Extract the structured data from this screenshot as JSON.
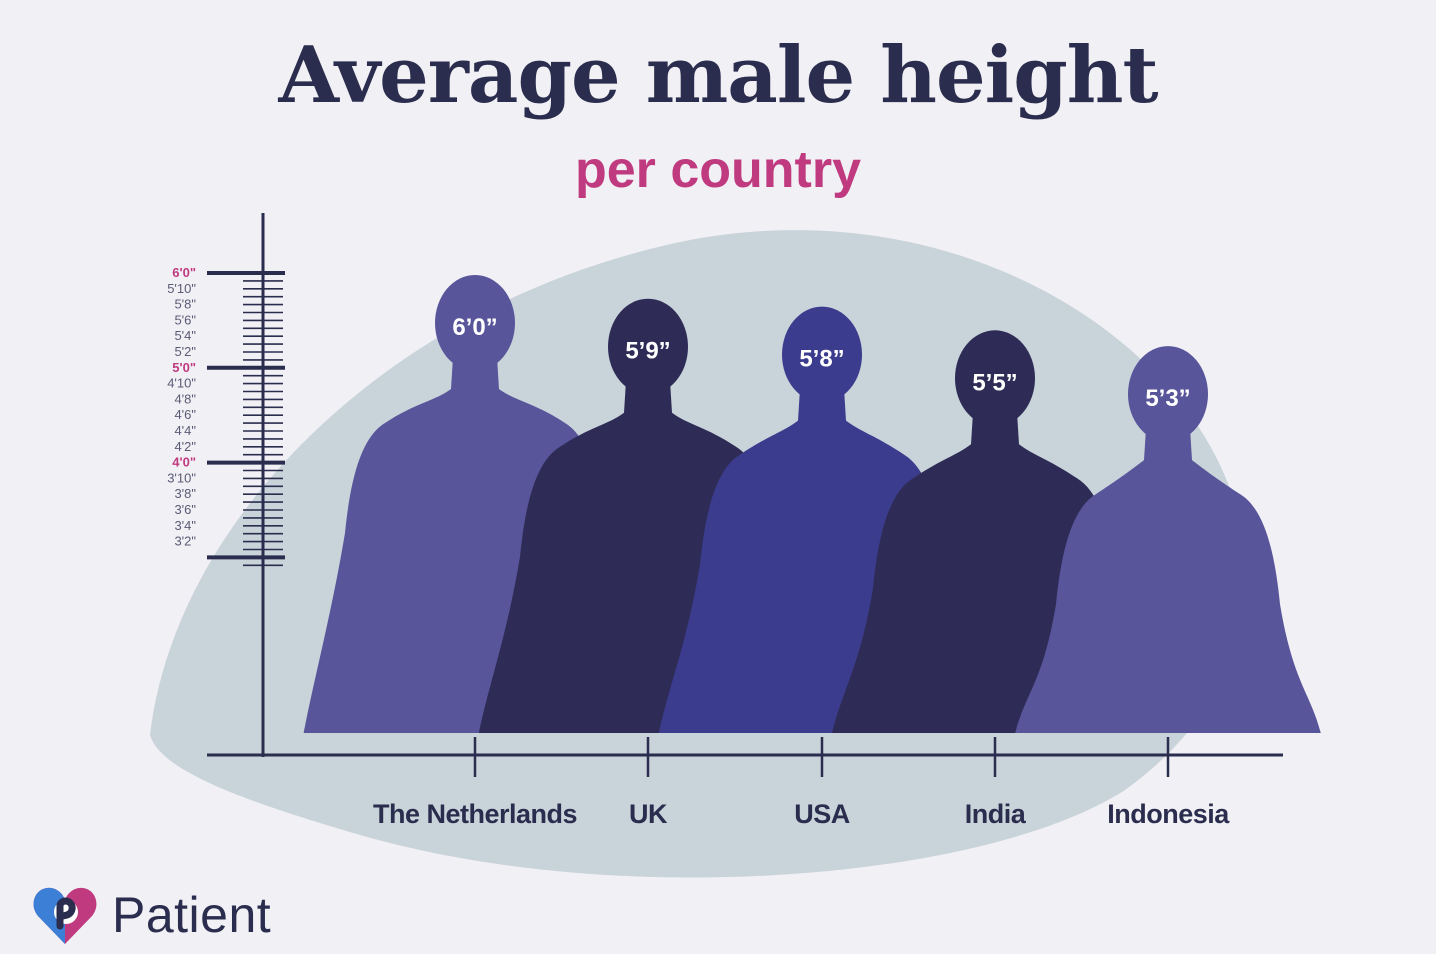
{
  "header": {
    "title": "Average male height",
    "subtitle": "per country"
  },
  "brand": {
    "name": "Patient",
    "logo_icon": "heart-p-logo-icon",
    "logo_colors": [
      "#3b7fd6",
      "#c03a80",
      "#2b2d4e"
    ]
  },
  "colors": {
    "background": "#f1f0f5",
    "blob": "#c9d4da",
    "axis": "#2b2d4e",
    "title": "#2b2d4e",
    "subtitle": "#c03a80",
    "major_tick_label": "#c03a80"
  },
  "chart_data": {
    "type": "bar",
    "title": "Average male height",
    "subtitle": "per country",
    "xlabel": "",
    "ylabel": "",
    "units": "feet'inches\"",
    "categories": [
      "The Netherlands",
      "UK",
      "USA",
      "India",
      "Indonesia"
    ],
    "values_inches": [
      72,
      69,
      68,
      65,
      63
    ],
    "value_labels": [
      "6’0”",
      "5’9”",
      "5’8”",
      "5’5”",
      "5’3”"
    ],
    "figure_colors": [
      "#58559a",
      "#2e2c56",
      "#3c3c8e",
      "#2e2c56",
      "#58559a"
    ],
    "y_ticks_labeled": [
      "6'0\"",
      "5'10\"",
      "5'8\"",
      "5'6\"",
      "5'4\"",
      "5'2\"",
      "5'0\"",
      "4'10\"",
      "4'8\"",
      "4'6\"",
      "4'4\"",
      "4'2\"",
      "4'0\"",
      "3'10\"",
      "3'8\"",
      "3'6\"",
      "3'4\"",
      "3'2\""
    ],
    "y_tick_values_inches": [
      72,
      70,
      68,
      66,
      64,
      62,
      60,
      58,
      56,
      54,
      52,
      50,
      48,
      46,
      44,
      42,
      40,
      38
    ],
    "y_major_ticks": [
      "6'0\"",
      "5'0\"",
      "4'0\""
    ],
    "ylim_inches": [
      35,
      72
    ],
    "grid": false,
    "legend": "none"
  }
}
